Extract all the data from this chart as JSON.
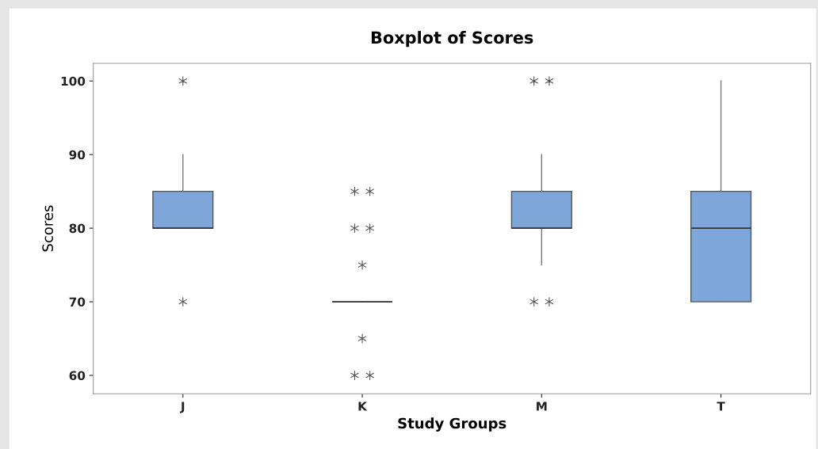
{
  "chart_data": {
    "type": "box",
    "title": "Boxplot of Scores",
    "xlabel": "Study Groups",
    "ylabel": "Scores",
    "categories": [
      "J",
      "K",
      "M",
      "T"
    ],
    "boxes": [
      {
        "low": 80,
        "q1": 80,
        "median": 80,
        "q3": 85,
        "high": 90,
        "outliers": [
          100,
          70
        ]
      },
      {
        "low": 70,
        "q1": 70,
        "median": 70,
        "q3": 70,
        "high": 70,
        "outliers": [
          85,
          85,
          80,
          80,
          75,
          65,
          60,
          60
        ]
      },
      {
        "low": 75,
        "q1": 80,
        "median": 80,
        "q3": 85,
        "high": 90,
        "outliers": [
          100,
          100,
          70,
          70
        ]
      },
      {
        "low": 70,
        "q1": 70,
        "median": 80,
        "q3": 85,
        "high": 100
      }
    ],
    "color": "#7ea6d8",
    "ylim": [
      57.5,
      102.4
    ],
    "yticks": [
      60,
      70,
      80,
      90,
      100
    ],
    "grid": false,
    "marker": "star"
  }
}
